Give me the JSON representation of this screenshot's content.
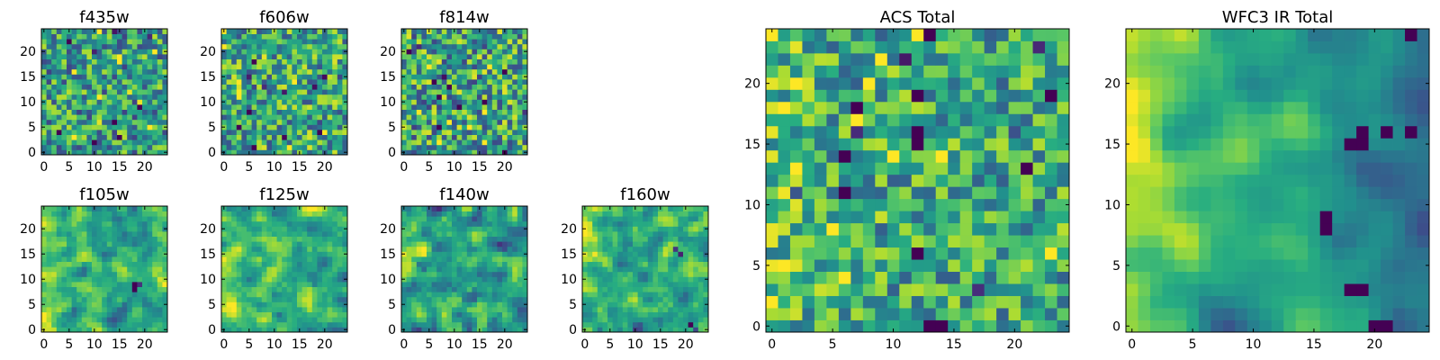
{
  "figure": {
    "background": "#ffffff",
    "colormap": "viridis",
    "colormap_stops": [
      "#440154",
      "#3b528b",
      "#21918c",
      "#5ec962",
      "#fde725"
    ]
  },
  "chart_data": [
    {
      "type": "heatmap",
      "title": "f435w",
      "grid_size": [
        25,
        25
      ],
      "x_ticks": [
        0,
        5,
        10,
        15,
        20
      ],
      "y_ticks": [
        0,
        5,
        10,
        15,
        20
      ],
      "xlim": [
        -0.5,
        24.5
      ],
      "ylim": [
        -0.5,
        24.5
      ],
      "grid": false,
      "texture": "uniform noise, mostly green/teal with scattered dark and yellow pixels",
      "seed": 11,
      "bias": 0.55,
      "noise": 0.35,
      "smooth": 0
    },
    {
      "type": "heatmap",
      "title": "f606w",
      "grid_size": [
        25,
        25
      ],
      "x_ticks": [
        0,
        5,
        10,
        15,
        20
      ],
      "y_ticks": [
        0,
        5,
        10,
        15,
        20
      ],
      "xlim": [
        -0.5,
        24.5
      ],
      "ylim": [
        -0.5,
        24.5
      ],
      "grid": false,
      "seed": 23,
      "bias": 0.6,
      "noise": 0.35,
      "smooth": 0
    },
    {
      "type": "heatmap",
      "title": "f814w",
      "grid_size": [
        25,
        25
      ],
      "x_ticks": [
        0,
        5,
        10,
        15,
        20
      ],
      "y_ticks": [
        0,
        5,
        10,
        15,
        20
      ],
      "xlim": [
        -0.5,
        24.5
      ],
      "ylim": [
        -0.5,
        24.5
      ],
      "grid": false,
      "seed": 37,
      "bias": 0.58,
      "noise": 0.38,
      "smooth": 0
    },
    {
      "type": "heatmap",
      "title": "f105w",
      "grid_size": [
        25,
        25
      ],
      "x_ticks": [
        0,
        5,
        10,
        15,
        20
      ],
      "y_ticks": [
        0,
        5,
        10,
        15,
        20
      ],
      "xlim": [
        -0.5,
        24.5
      ],
      "ylim": [
        -0.5,
        24.5
      ],
      "grid": false,
      "seed": 41,
      "bias": 0.62,
      "noise": 0.32,
      "smooth": 1,
      "left_brightness": 0.15,
      "hotspots": [
        [
          18,
          9,
          -0.6
        ],
        [
          19,
          9,
          -0.55
        ],
        [
          18,
          8,
          -0.5
        ]
      ]
    },
    {
      "type": "heatmap",
      "title": "f125w",
      "grid_size": [
        25,
        25
      ],
      "x_ticks": [
        0,
        5,
        10,
        15,
        20
      ],
      "y_ticks": [
        0,
        5,
        10,
        15,
        20
      ],
      "xlim": [
        -0.5,
        24.5
      ],
      "ylim": [
        -0.5,
        24.5
      ],
      "grid": false,
      "seed": 53,
      "bias": 0.65,
      "noise": 0.32,
      "smooth": 1,
      "left_brightness": 0.12
    },
    {
      "type": "heatmap",
      "title": "f140w",
      "grid_size": [
        25,
        25
      ],
      "x_ticks": [
        0,
        5,
        10,
        15,
        20
      ],
      "y_ticks": [
        0,
        5,
        10,
        15,
        20
      ],
      "xlim": [
        -0.5,
        24.5
      ],
      "ylim": [
        -0.5,
        24.5
      ],
      "grid": false,
      "seed": 67,
      "bias": 0.6,
      "noise": 0.34,
      "smooth": 1,
      "left_brightness": 0.12
    },
    {
      "type": "heatmap",
      "title": "f160w",
      "grid_size": [
        25,
        25
      ],
      "x_ticks": [
        0,
        5,
        10,
        15,
        20
      ],
      "y_ticks": [
        0,
        5,
        10,
        15,
        20
      ],
      "xlim": [
        -0.5,
        24.5
      ],
      "ylim": [
        -0.5,
        24.5
      ],
      "grid": false,
      "seed": 79,
      "bias": 0.6,
      "noise": 0.33,
      "smooth": 1,
      "left_brightness": 0.15,
      "hotspots": [
        [
          18,
          16,
          -0.6
        ],
        [
          19,
          15,
          -0.55
        ],
        [
          21,
          1,
          -0.6
        ],
        [
          22,
          0,
          -0.5
        ]
      ]
    },
    {
      "type": "heatmap",
      "title": "ACS Total",
      "grid_size": [
        25,
        25
      ],
      "x_ticks": [
        0,
        5,
        10,
        15,
        20
      ],
      "y_ticks": [
        0,
        5,
        10,
        15,
        20
      ],
      "xlim": [
        -0.5,
        24.5
      ],
      "ylim": [
        -0.5,
        24.5
      ],
      "grid": false,
      "seed": 97,
      "bias": 0.6,
      "noise": 0.3,
      "smooth": 0,
      "left_brightness": 0.1,
      "hotspots": [
        [
          6,
          14,
          -0.9
        ],
        [
          6,
          11,
          -0.9
        ],
        [
          12,
          16,
          -0.9
        ],
        [
          12,
          15,
          -0.85
        ],
        [
          7,
          18,
          -0.9
        ],
        [
          12,
          6,
          -0.9
        ],
        [
          17,
          3,
          -0.7
        ],
        [
          21,
          13,
          -0.9
        ],
        [
          23,
          19,
          -0.9
        ],
        [
          12,
          19,
          -0.8
        ]
      ]
    },
    {
      "type": "heatmap",
      "title": "WFC3 IR Total",
      "grid_size": [
        25,
        25
      ],
      "x_ticks": [
        0,
        5,
        10,
        15,
        20
      ],
      "y_ticks": [
        0,
        5,
        10,
        15,
        20
      ],
      "xlim": [
        -0.5,
        24.5
      ],
      "ylim": [
        -0.5,
        24.5
      ],
      "grid": false,
      "seed": 113,
      "bias": 0.6,
      "noise": 0.14,
      "smooth": 2,
      "left_brightness": 0.3,
      "right_darkness": 0.25,
      "hotspots": [
        [
          18,
          15,
          -0.8
        ],
        [
          19,
          15,
          -0.8
        ],
        [
          19,
          16,
          -0.75
        ],
        [
          21,
          16,
          -0.7
        ],
        [
          23,
          16,
          -0.6
        ],
        [
          18,
          3,
          -0.8
        ],
        [
          19,
          3,
          -0.8
        ],
        [
          20,
          0,
          -0.85
        ],
        [
          21,
          0,
          -0.85
        ],
        [
          16,
          9,
          -0.8
        ],
        [
          16,
          8,
          -0.75
        ],
        [
          23,
          24,
          -0.6
        ]
      ]
    }
  ]
}
